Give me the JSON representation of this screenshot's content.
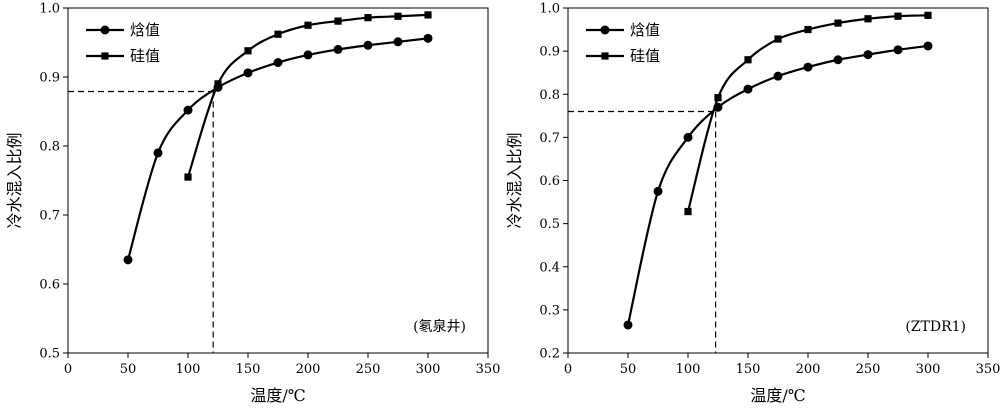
{
  "chart_data": [
    {
      "type": "line",
      "xlabel": "温度/℃",
      "ylabel": "冷水混入比例",
      "xlim": [
        0,
        350
      ],
      "ylim": [
        0.5,
        1.0
      ],
      "xticks": [
        0,
        50,
        100,
        150,
        200,
        250,
        300,
        350
      ],
      "yticks": [
        0.5,
        0.6,
        0.7,
        0.8,
        0.9,
        1.0
      ],
      "ytick_labels": [
        "0.5",
        "0.6",
        "0.7",
        "0.8",
        "0.9",
        "1.0"
      ],
      "annotation": "(氡泉井)",
      "legend_position": "top-left",
      "intersection": {
        "x": 121,
        "y": 0.879
      },
      "series": [
        {
          "name": "焓值",
          "marker": "circle",
          "x": [
            50,
            75,
            100,
            125,
            150,
            175,
            200,
            225,
            250,
            275,
            300
          ],
          "y": [
            0.635,
            0.79,
            0.852,
            0.885,
            0.906,
            0.921,
            0.932,
            0.94,
            0.946,
            0.951,
            0.956
          ]
        },
        {
          "name": "硅值",
          "marker": "square",
          "x": [
            100,
            125,
            150,
            175,
            200,
            225,
            250,
            275,
            300
          ],
          "y": [
            0.755,
            0.89,
            0.938,
            0.962,
            0.975,
            0.981,
            0.986,
            0.988,
            0.99
          ]
        }
      ]
    },
    {
      "type": "line",
      "xlabel": "温度/℃",
      "ylabel": "冷水混入比例",
      "xlim": [
        0,
        350
      ],
      "ylim": [
        0.2,
        1.0
      ],
      "xticks": [
        0,
        50,
        100,
        150,
        200,
        250,
        300,
        350
      ],
      "yticks": [
        0.2,
        0.3,
        0.4,
        0.5,
        0.6,
        0.7,
        0.8,
        0.9,
        1.0
      ],
      "ytick_labels": [
        "0.2",
        "0.3",
        "0.4",
        "0.5",
        "0.6",
        "0.7",
        "0.8",
        "0.9",
        "1.0"
      ],
      "annotation": "(ZTDR1)",
      "legend_position": "top-left",
      "intersection": {
        "x": 123,
        "y": 0.76
      },
      "series": [
        {
          "name": "焓值",
          "marker": "circle",
          "x": [
            50,
            75,
            100,
            125,
            150,
            175,
            200,
            225,
            250,
            275,
            300
          ],
          "y": [
            0.265,
            0.575,
            0.7,
            0.77,
            0.812,
            0.842,
            0.863,
            0.88,
            0.892,
            0.903,
            0.912
          ]
        },
        {
          "name": "硅值",
          "marker": "square",
          "x": [
            100,
            125,
            150,
            175,
            200,
            225,
            250,
            275,
            300
          ],
          "y": [
            0.528,
            0.792,
            0.88,
            0.928,
            0.95,
            0.965,
            0.975,
            0.981,
            0.983
          ]
        }
      ]
    }
  ]
}
